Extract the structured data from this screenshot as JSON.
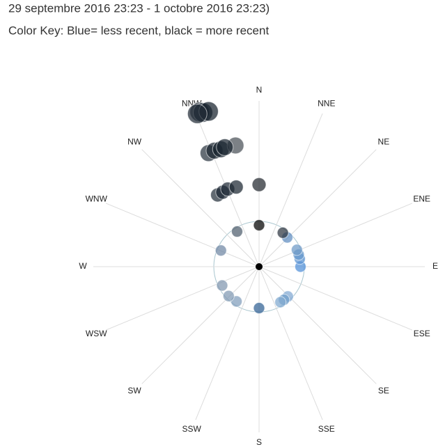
{
  "chart_data": {
    "type": "polar-scatter",
    "title": "29 septembre 2016 23:23 - 1 octobre 2016 23:23)",
    "subtitle": "Color Key: Blue= less recent, black = more recent",
    "directions": [
      "N",
      "NNE",
      "NE",
      "ENE",
      "E",
      "ESE",
      "SE",
      "SSE",
      "S",
      "SSW",
      "SW",
      "WSW",
      "W",
      "WNW",
      "NW",
      "NNW"
    ],
    "rlim": [
      0,
      10
    ],
    "theta": [
      136,
      143,
      149,
      213,
      226,
      243,
      180,
      90,
      79,
      73,
      66,
      44,
      293,
      328,
      35,
      330,
      334,
      338,
      344,
      336,
      339,
      342,
      349,
      344,
      339,
      340,
      342,
      338,
      0,
      0
    ],
    "r": [
      2.5,
      2.5,
      2.5,
      2.5,
      2.55,
      2.5,
      2.5,
      2.5,
      2.5,
      2.5,
      2.5,
      2.45,
      2.5,
      2.5,
      2.5,
      5.0,
      5.0,
      5.05,
      5.0,
      7.5,
      7.5,
      7.45,
      7.45,
      7.5,
      10.0,
      9.9,
      9.85,
      9.95,
      4.95,
      2.5
    ],
    "colors": [
      "#7fa8d2",
      "#6f9cc9",
      "#7ea7cf",
      "#7f9dbb",
      "#7f98b3",
      "#7f95ae",
      "#2f5f93",
      "#4f8fd8",
      "#5a93d2",
      "#6698cc",
      "#6c98c6",
      "#5e8cc0",
      "#6f87a3",
      "#4e5d6c",
      "#2c3540",
      "#26303b",
      "#1c2733",
      "#1e2a36",
      "#1b2530",
      "#2a3440",
      "#1a2530",
      "#16222e",
      "#4a5058",
      "#1a2530",
      "#2a3440",
      "#1d2834",
      "#16212c",
      "#222d38",
      "#23282f",
      "#000000"
    ]
  }
}
